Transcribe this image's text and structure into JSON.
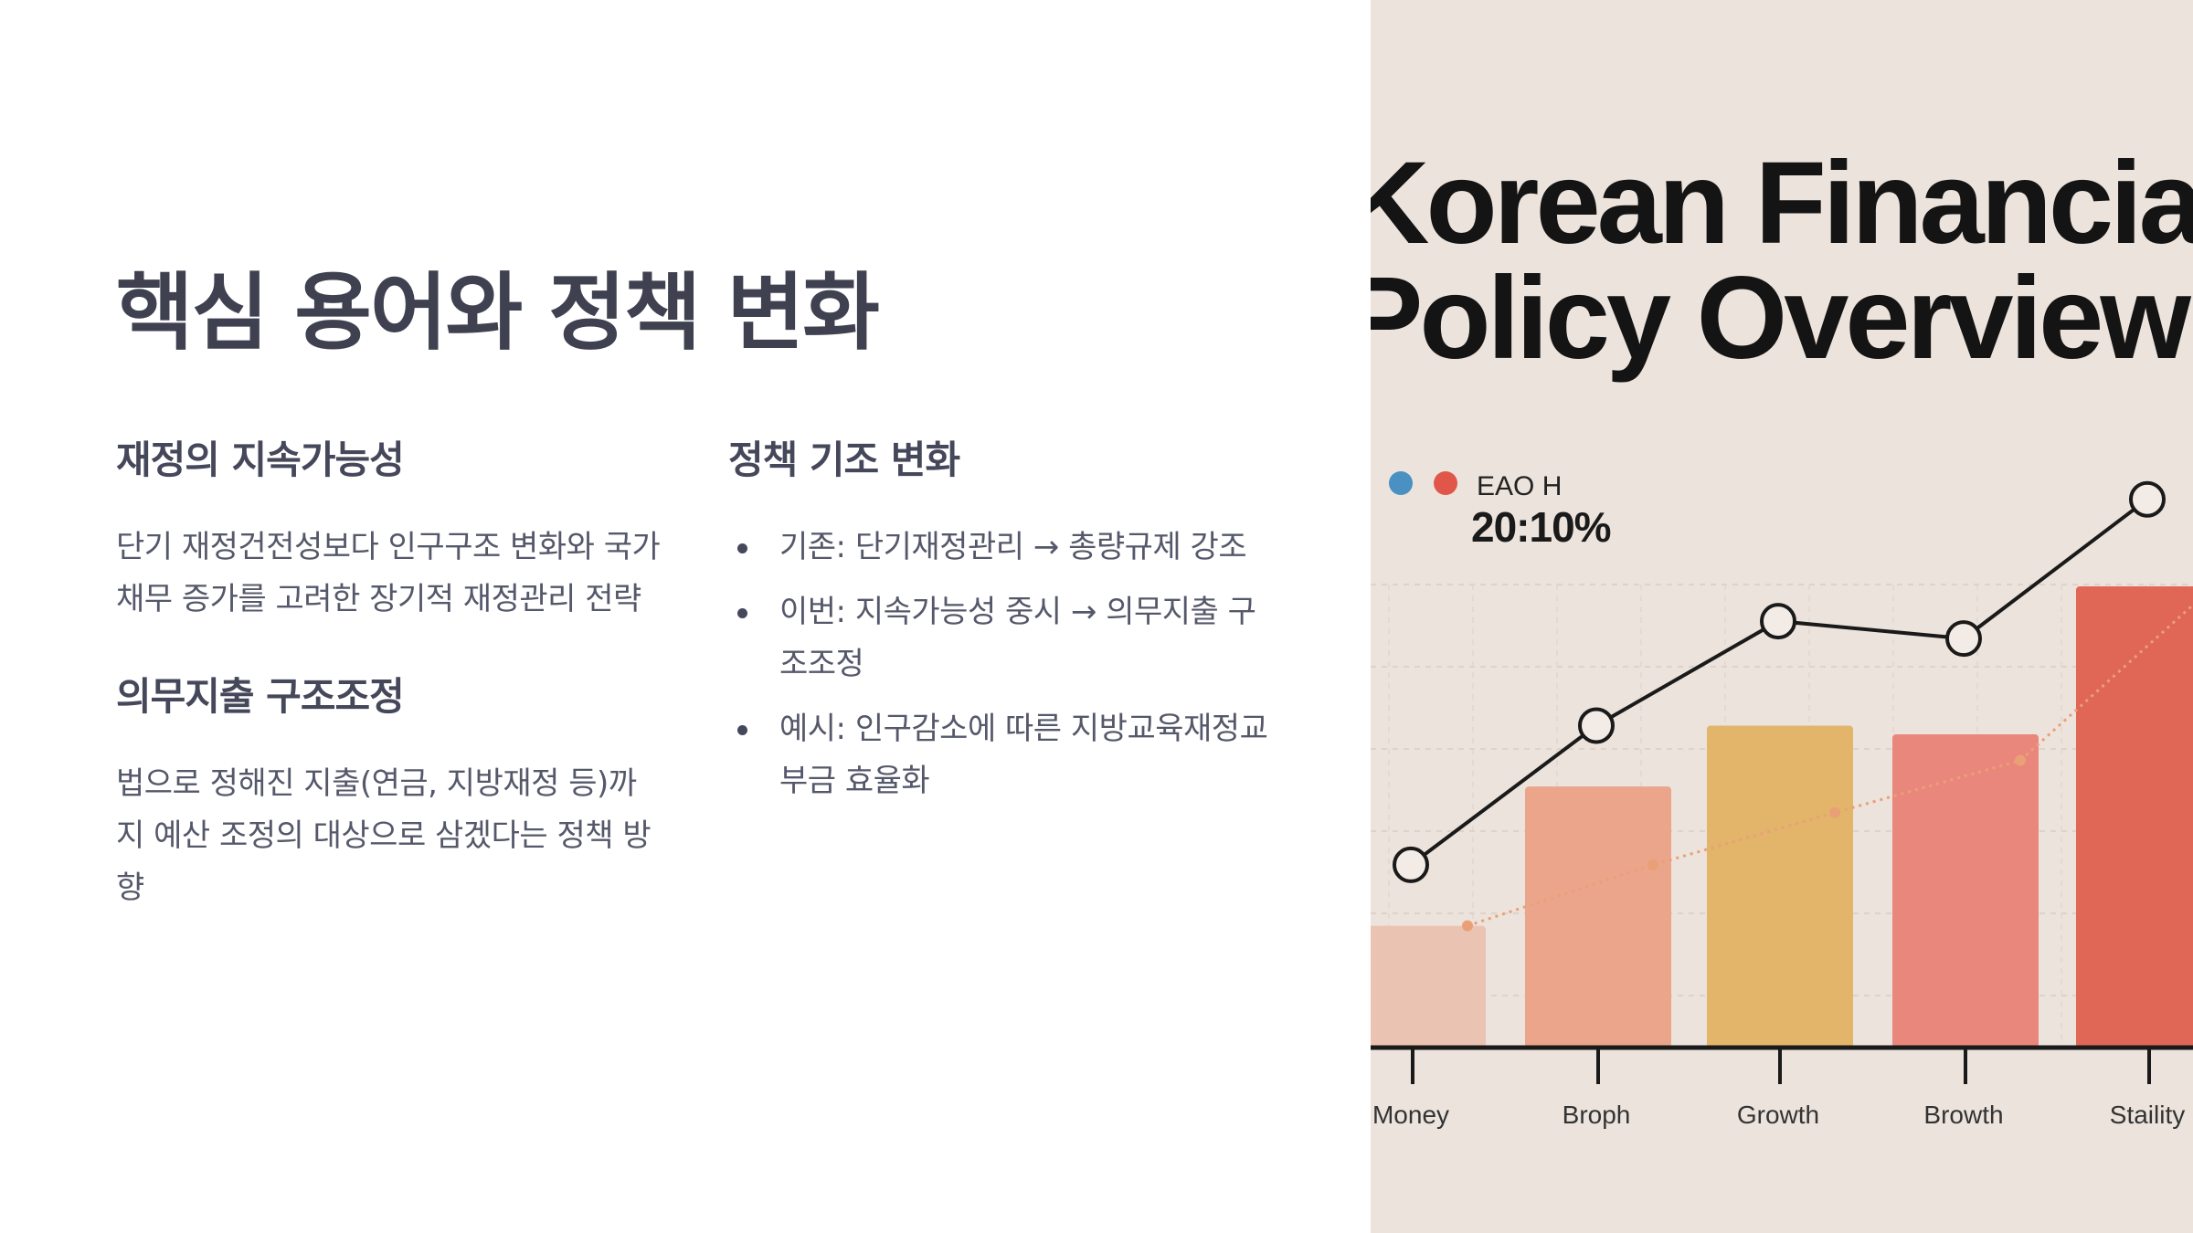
{
  "slide": {
    "title": "핵심 용어와 정책 변화",
    "left_column": [
      {
        "heading": "재정의 지속가능성",
        "body": "단기 재정건전성보다 인구구조 변화와 국가채무 증가를 고려한 장기적 재정관리 전략"
      },
      {
        "heading": "의무지출 구조조정",
        "body": "법으로 정해진 지출(연금, 지방재정 등)까지 예산 조정의 대상으로 삼겠다는 정책 방향"
      }
    ],
    "right_column": {
      "heading": "정책 기조 변화",
      "bullets": [
        "기존: 단기재정관리 → 총량규제 강조",
        "이번: 지속가능성 중시 → 의무지출 구조조정",
        "예시: 인구감소에 따른 지방교육재정교부금 효율화"
      ]
    }
  },
  "poster": {
    "title": "Korean Financial\nPolicy Overview",
    "legend_label": "EAO H",
    "legend_value": "20:10%",
    "legend_colors": [
      "#4a90c2",
      "#e0574a"
    ]
  },
  "chart_data": {
    "type": "bar",
    "categories": [
      "Money",
      "Broph",
      "Growth",
      "Browth",
      "Staility"
    ],
    "series": [
      {
        "values": [
          14,
          30,
          37,
          36,
          53
        ],
        "colors": [
          "#ebc3b3",
          "#eaa58a",
          "#e2b56a",
          "#e9877d",
          "#e06655"
        ]
      },
      {
        "type": "line",
        "values": [
          21,
          37,
          49,
          47,
          63
        ],
        "color": "#1a1a1a"
      },
      {
        "type": "line",
        "values": [
          14,
          21,
          27,
          33,
          52
        ],
        "color": "#eaa077"
      }
    ],
    "ylim": [
      0,
      70
    ]
  }
}
